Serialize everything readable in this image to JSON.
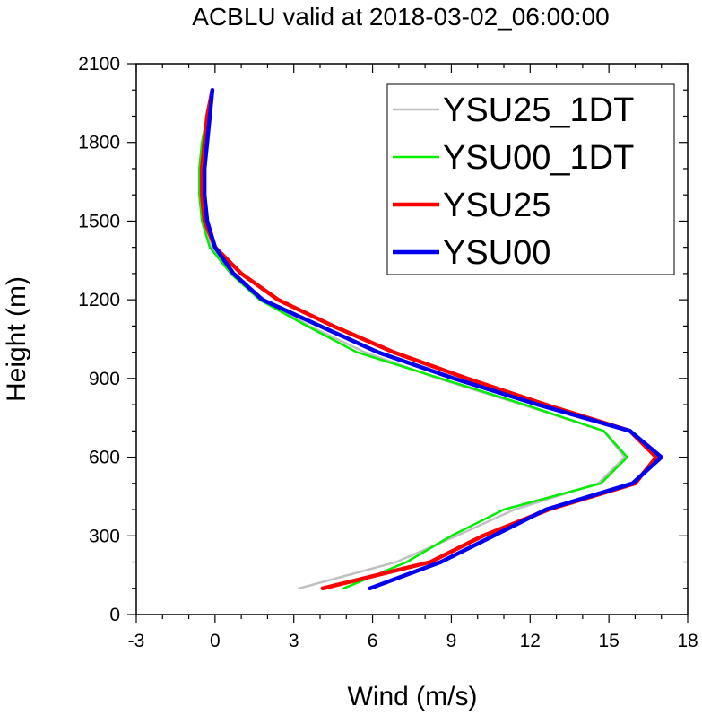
{
  "chart_data": {
    "type": "line",
    "title": "ACBLU valid at 2018-03-02_06:00:00",
    "xlabel": "Wind (m/s)",
    "ylabel": "Height (m)",
    "xlim": [
      -3,
      18
    ],
    "ylim": [
      0,
      2100
    ],
    "xticks": [
      -3,
      0,
      3,
      6,
      9,
      12,
      15,
      18
    ],
    "yticks": [
      0,
      300,
      600,
      900,
      1200,
      1500,
      1800,
      2100
    ],
    "grid": false,
    "legend_position": "top-right",
    "series": [
      {
        "name": "YSU25_1DT",
        "color": "#c0c0c0",
        "points": [
          [
            3.2,
            100
          ],
          [
            6.9,
            200
          ],
          [
            9.2,
            300
          ],
          [
            11.4,
            400
          ],
          [
            14.6,
            500
          ],
          [
            15.6,
            600
          ],
          [
            14.8,
            700
          ],
          [
            11.7,
            800
          ],
          [
            8.5,
            900
          ],
          [
            5.7,
            1000
          ],
          [
            3.6,
            1100
          ],
          [
            1.9,
            1200
          ],
          [
            0.6,
            1300
          ],
          [
            -0.1,
            1400
          ],
          [
            -0.5,
            1500
          ],
          [
            -0.5,
            1600
          ],
          [
            -0.5,
            1700
          ],
          [
            -0.4,
            1800
          ],
          [
            -0.3,
            1900
          ],
          [
            -0.1,
            2000
          ]
        ]
      },
      {
        "name": "YSU00_1DT",
        "color": "#00ee00",
        "points": [
          [
            4.9,
            100
          ],
          [
            7.3,
            200
          ],
          [
            9.0,
            300
          ],
          [
            11.0,
            400
          ],
          [
            14.7,
            500
          ],
          [
            15.7,
            600
          ],
          [
            14.8,
            700
          ],
          [
            11.8,
            800
          ],
          [
            8.6,
            900
          ],
          [
            5.4,
            1000
          ],
          [
            3.5,
            1100
          ],
          [
            1.7,
            1200
          ],
          [
            0.6,
            1300
          ],
          [
            -0.2,
            1400
          ],
          [
            -0.5,
            1500
          ],
          [
            -0.6,
            1600
          ],
          [
            -0.6,
            1700
          ],
          [
            -0.5,
            1800
          ],
          [
            -0.3,
            1900
          ],
          [
            -0.1,
            2000
          ]
        ]
      },
      {
        "name": "YSU25",
        "color": "#ff0000",
        "points": [
          [
            4.1,
            100
          ],
          [
            8.2,
            200
          ],
          [
            10.2,
            300
          ],
          [
            12.7,
            400
          ],
          [
            16.0,
            500
          ],
          [
            16.8,
            600
          ],
          [
            15.8,
            700
          ],
          [
            12.6,
            800
          ],
          [
            9.6,
            900
          ],
          [
            6.8,
            1000
          ],
          [
            4.5,
            1100
          ],
          [
            2.4,
            1200
          ],
          [
            1.0,
            1300
          ],
          [
            0.0,
            1400
          ],
          [
            -0.4,
            1500
          ],
          [
            -0.5,
            1600
          ],
          [
            -0.5,
            1700
          ],
          [
            -0.4,
            1800
          ],
          [
            -0.3,
            1900
          ],
          [
            -0.1,
            2000
          ]
        ]
      },
      {
        "name": "YSU00",
        "color": "#0000ee",
        "points": [
          [
            5.9,
            100
          ],
          [
            8.6,
            200
          ],
          [
            10.6,
            300
          ],
          [
            12.6,
            400
          ],
          [
            15.9,
            500
          ],
          [
            17.0,
            600
          ],
          [
            15.8,
            700
          ],
          [
            12.3,
            800
          ],
          [
            9.1,
            900
          ],
          [
            6.2,
            1000
          ],
          [
            4.0,
            1100
          ],
          [
            1.8,
            1200
          ],
          [
            0.7,
            1300
          ],
          [
            0.0,
            1400
          ],
          [
            -0.3,
            1500
          ],
          [
            -0.4,
            1600
          ],
          [
            -0.4,
            1700
          ],
          [
            -0.3,
            1800
          ],
          [
            -0.2,
            1900
          ],
          [
            -0.1,
            2000
          ]
        ]
      }
    ]
  }
}
